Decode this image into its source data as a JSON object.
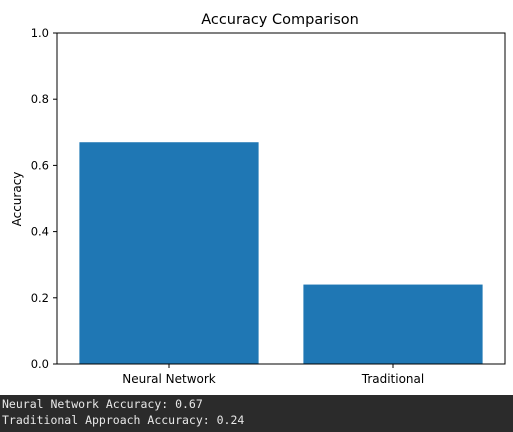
{
  "chart_data": {
    "type": "bar",
    "title": "Accuracy Comparison",
    "xlabel": "",
    "ylabel": "Accuracy",
    "categories": [
      "Neural Network",
      "Traditional"
    ],
    "values": [
      0.67,
      0.24
    ],
    "ylim": [
      0.0,
      1.0
    ],
    "yticks": [
      "0.0",
      "0.2",
      "0.4",
      "0.6",
      "0.8",
      "1.0"
    ],
    "grid": false,
    "bar_color": "#1f77b4"
  },
  "console": {
    "lines": [
      "Neural Network Accuracy: 0.67",
      "Traditional Approach Accuracy: 0.24"
    ]
  }
}
